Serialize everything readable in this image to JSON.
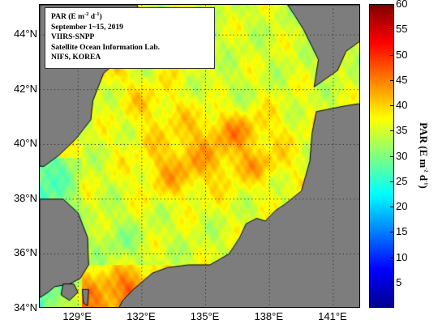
{
  "info_box": {
    "title": "PAR (E m",
    "title_exp1": "-2",
    "title_mid": " d",
    "title_exp2": "-1",
    "title_end": ")",
    "period": "September 1~15, 2019",
    "sensor": "VIIRS-SNPP",
    "lab": "Satellite Ocean Information Lab.",
    "org": "NIFS, KOREA"
  },
  "axes": {
    "lat_labels": [
      {
        "value": 44,
        "text": "44°N"
      },
      {
        "value": 42,
        "text": "42°N"
      },
      {
        "value": 40,
        "text": "40°N"
      },
      {
        "value": 38,
        "text": "38°N"
      },
      {
        "value": 36,
        "text": "36°N"
      },
      {
        "value": 34,
        "text": "34°N"
      }
    ],
    "lon_labels": [
      {
        "value": 129,
        "text": "129°E"
      },
      {
        "value": 132,
        "text": "132°E"
      },
      {
        "value": 135,
        "text": "135°E"
      },
      {
        "value": 138,
        "text": "138°E"
      },
      {
        "value": 141,
        "text": "141°E"
      }
    ]
  },
  "colorbar": {
    "title": "PAR (E m",
    "title_exp1": "-2",
    "title_mid": " d",
    "title_exp2": "-1",
    "title_end": ")",
    "min": 0,
    "max": 60,
    "ticks": [
      5,
      10,
      15,
      20,
      25,
      30,
      35,
      40,
      45,
      50,
      55,
      60
    ],
    "colormap": [
      "#00008f",
      "#0000ff",
      "#0080ff",
      "#00ffff",
      "#80ff80",
      "#ffff00",
      "#ff8000",
      "#ff0000",
      "#800000"
    ]
  },
  "chart_data": {
    "type": "heatmap",
    "variable": "PAR",
    "units": "E m-2 d-1",
    "lon_range": [
      127.2,
      142.3
    ],
    "lat_range": [
      34,
      45.1
    ],
    "grid_lines": true,
    "land_color": "#7d7d7d",
    "typical_values": {
      "yellow_sea_west": 26,
      "east_sea_north": 35,
      "east_sea_central": 39,
      "korea_strait_south": 44
    }
  }
}
